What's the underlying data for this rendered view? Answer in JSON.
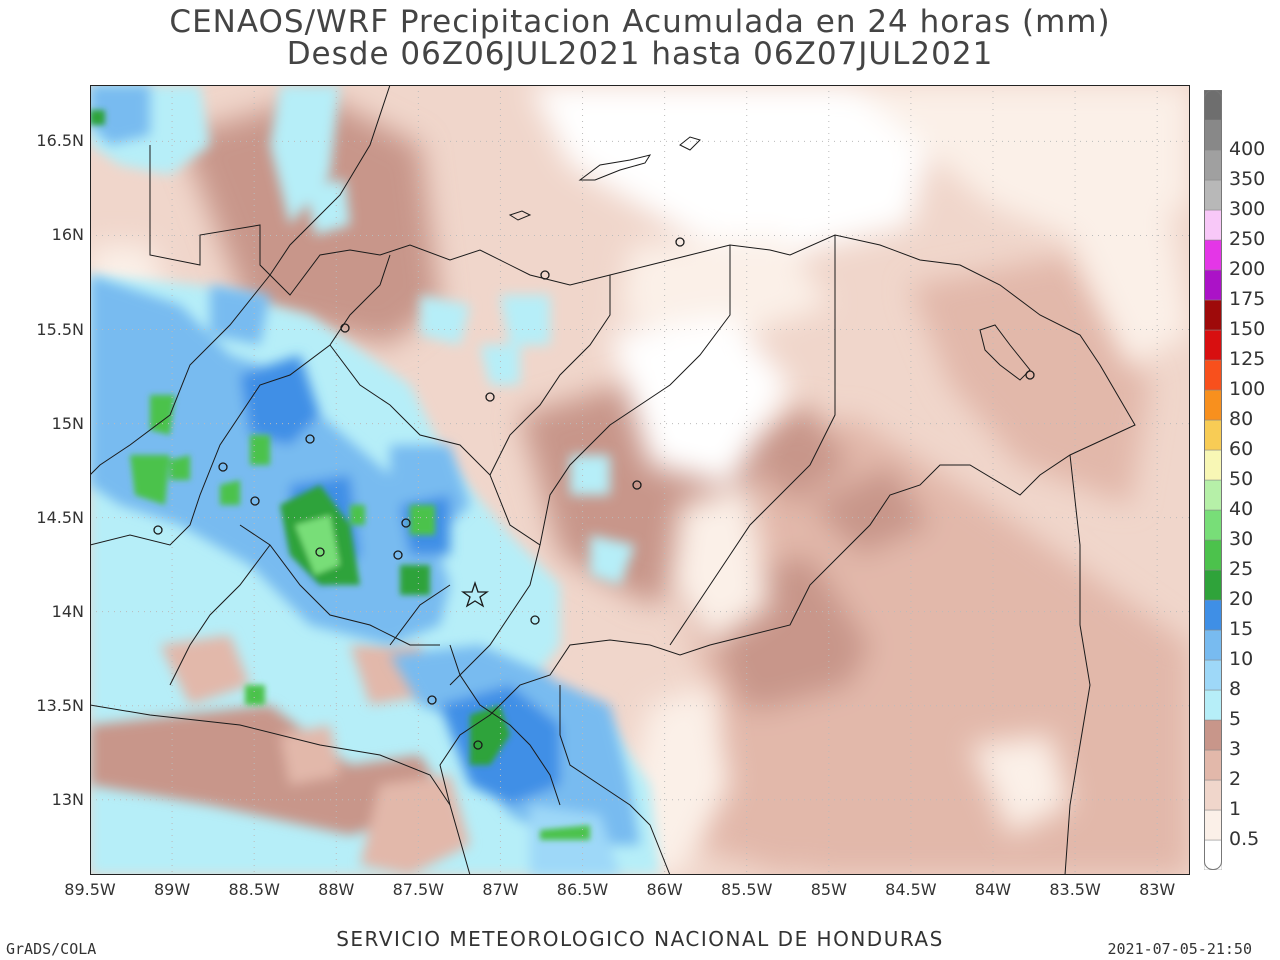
{
  "title": {
    "line1": "CENAOS/WRF Precipitacion Acumulada en 24 horas (mm)",
    "line2": "Desde 06Z06JUL2021 hasta 06Z07JUL2021"
  },
  "map": {
    "lon_range": [
      -89.5,
      -82.8
    ],
    "lat_range": [
      12.6,
      16.8
    ],
    "x_ticks": [
      {
        "lon": -89.5,
        "label": "89.5W"
      },
      {
        "lon": -89,
        "label": "89W"
      },
      {
        "lon": -88.5,
        "label": "88.5W"
      },
      {
        "lon": -88,
        "label": "88W"
      },
      {
        "lon": -87.5,
        "label": "87.5W"
      },
      {
        "lon": -87,
        "label": "87W"
      },
      {
        "lon": -86.5,
        "label": "86.5W"
      },
      {
        "lon": -86,
        "label": "86W"
      },
      {
        "lon": -85.5,
        "label": "85.5W"
      },
      {
        "lon": -85,
        "label": "85W"
      },
      {
        "lon": -84.5,
        "label": "84.5W"
      },
      {
        "lon": -84,
        "label": "84W"
      },
      {
        "lon": -83.5,
        "label": "83.5W"
      },
      {
        "lon": -83,
        "label": "83W"
      }
    ],
    "y_ticks": [
      {
        "lat": 16.5,
        "label": "16.5N"
      },
      {
        "lat": 16,
        "label": "16N"
      },
      {
        "lat": 15.5,
        "label": "15.5N"
      },
      {
        "lat": 15,
        "label": "15N"
      },
      {
        "lat": 14.5,
        "label": "14.5N"
      },
      {
        "lat": 14,
        "label": "14N"
      },
      {
        "lat": 13.5,
        "label": "13.5N"
      },
      {
        "lat": 13,
        "label": "13N"
      }
    ],
    "grid": true
  },
  "colorbar": {
    "levels": [
      "0.5",
      "1",
      "2",
      "3",
      "5",
      "8",
      "10",
      "15",
      "20",
      "25",
      "30",
      "40",
      "50",
      "60",
      "80",
      "100",
      "125",
      "150",
      "175",
      "200",
      "250",
      "300",
      "350",
      "400"
    ],
    "colors": [
      "#ffffff",
      "#fbf0e8",
      "#f0d6cb",
      "#e2b8aa",
      "#c8968a",
      "#b6eef8",
      "#9ed8f8",
      "#78bbf0",
      "#3f8fe6",
      "#2fa33a",
      "#4cc24c",
      "#78de78",
      "#b6f0a8",
      "#f8f7b5",
      "#f8cc55",
      "#f8901e",
      "#f8501c",
      "#d80f10",
      "#9e0a0a",
      "#ab12c7",
      "#e436e7",
      "#f8c8f8",
      "#b8b8b8",
      "#a0a0a0",
      "#888888",
      "#6e6e6e"
    ]
  },
  "footer": {
    "center": "SERVICIO METEOROLOGICO NACIONAL DE HONDURAS",
    "left": "GrADS/COLA",
    "right": "2021-07-05-21:50"
  }
}
